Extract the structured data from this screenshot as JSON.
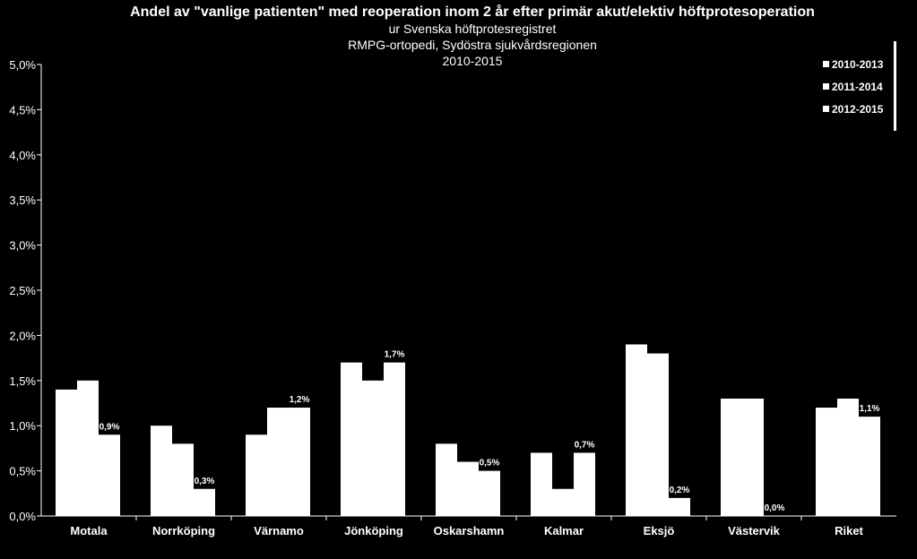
{
  "header": {
    "title": "Andel av \"vanlige patienten\" med reoperation inom 2 år efter primär akut/elektiv höftprotesoperation",
    "subtitle_1": "ur Svenska höftprotesregistret",
    "subtitle_2": "RMPG-ortopedi, Sydöstra sjukvårdsregionen",
    "subtitle_3": "2010-2015"
  },
  "colors": {
    "background": "#000000",
    "bars": "#ffffff",
    "text": "#ffffff"
  },
  "chart_data": {
    "type": "bar",
    "title": "Andel av \"vanlige patienten\" med reoperation inom 2 år efter primär akut/elektiv höftprotesoperation",
    "categories": [
      "Motala",
      "Norrköping",
      "Värnamo",
      "Jönköping",
      "Oskarshamn",
      "Kalmar",
      "Eksjö",
      "Västervik",
      "Riket"
    ],
    "series": [
      {
        "name": "2010-2013",
        "values": [
          1.4,
          1.0,
          0.9,
          1.7,
          0.8,
          0.7,
          1.9,
          1.3,
          1.2
        ]
      },
      {
        "name": "2011-2014",
        "values": [
          1.5,
          0.8,
          1.2,
          1.5,
          0.6,
          0.3,
          1.8,
          1.3,
          1.3
        ]
      },
      {
        "name": "2012-2015",
        "values": [
          0.9,
          0.3,
          1.2,
          1.7,
          0.5,
          0.7,
          0.2,
          0.0,
          1.1
        ]
      }
    ],
    "data_labels": [
      "0,9%",
      "0,3%",
      "1,2%",
      "1,7%",
      "0,5%",
      "0,7%",
      "0,2%",
      "0,0%",
      "1,1%"
    ],
    "y_ticks": [
      "0,0%",
      "0,5%",
      "1,0%",
      "1,5%",
      "2,0%",
      "2,5%",
      "3,0%",
      "3,5%",
      "4,0%",
      "4,5%",
      "5,0%"
    ],
    "ylim": [
      0,
      5
    ],
    "unit": "%",
    "grid": false,
    "legend_position": "top-right",
    "xlabel": "",
    "ylabel": ""
  }
}
